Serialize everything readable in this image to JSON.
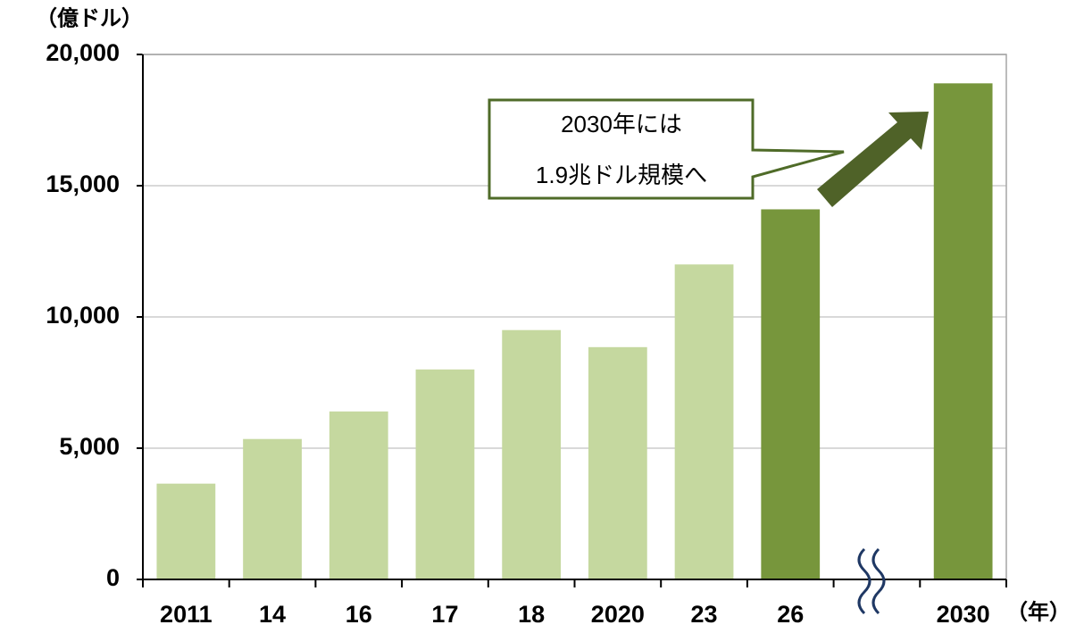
{
  "chart_data": {
    "type": "bar",
    "y_unit_label": "（億ドル）",
    "x_unit_label": "（年）",
    "categories": [
      "2011",
      "14",
      "16",
      "17",
      "18",
      "2020",
      "23",
      "26",
      null,
      "2030"
    ],
    "values": [
      3650,
      5350,
      6400,
      8000,
      9500,
      8850,
      12000,
      14100,
      null,
      18900
    ],
    "colors": [
      "#c5d89f",
      "#c5d89f",
      "#c5d89f",
      "#c5d89f",
      "#c5d89f",
      "#c5d89f",
      "#c5d89f",
      "#77963c",
      null,
      "#77963c"
    ],
    "ylim": [
      0,
      20000
    ],
    "yticks": [
      0,
      {
        "value": 5000,
        "label": "5,000"
      },
      {
        "value": 10000,
        "label": "10,000"
      },
      {
        "value": 15000,
        "label": "15,000"
      },
      {
        "value": 20000,
        "label": "20,000"
      }
    ],
    "grid": true,
    "annotation": [
      "2030年には",
      "1.9兆ドル規模へ"
    ]
  }
}
